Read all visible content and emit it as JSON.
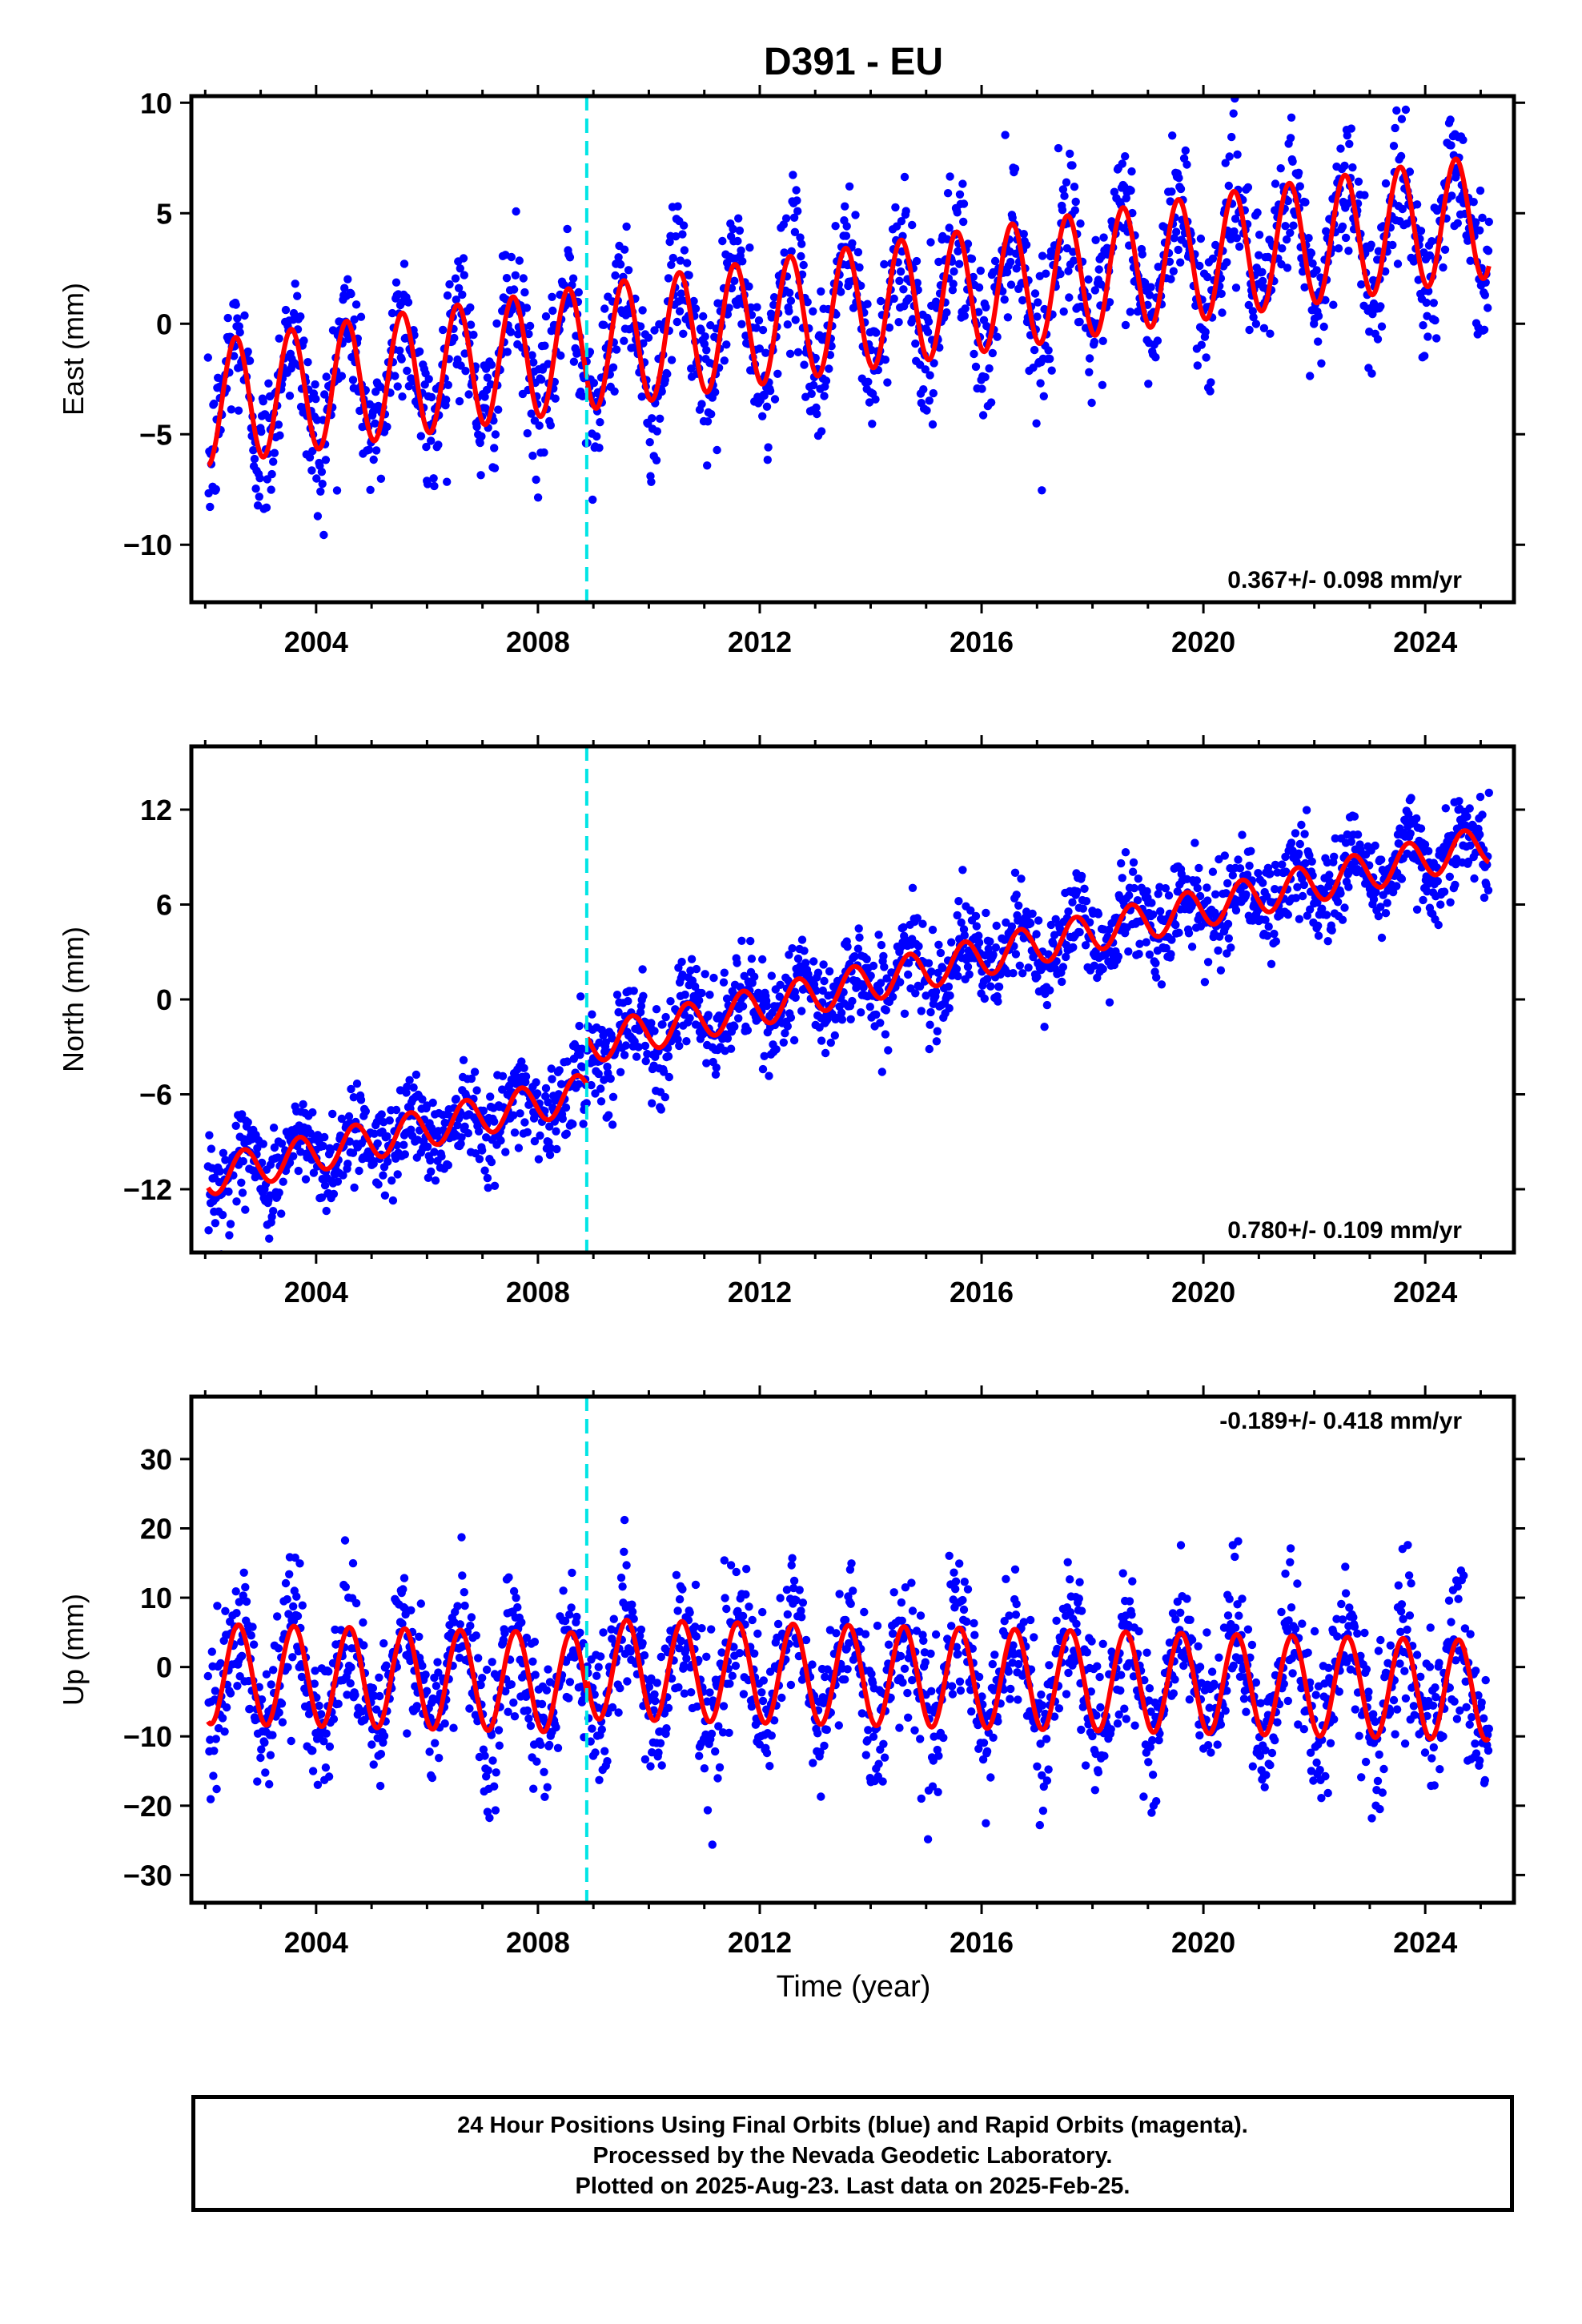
{
  "title": "D391 - EU",
  "x_axis_label": "Time (year)",
  "footer": {
    "line1": "24 Hour Positions Using Final Orbits (blue) and Rapid Orbits (magenta).",
    "line2": "Processed by the Nevada Geodetic Laboratory.",
    "line3": "Plotted on 2025-Aug-23. Last data on 2025-Feb-25."
  },
  "colors": {
    "points": "#0000ff",
    "model": "#ff0000",
    "step_line": "#00e5e5",
    "frame": "#000000"
  },
  "chart_data": [
    {
      "type": "scatter",
      "component": "east",
      "ylabel": "East (mm)",
      "xlim": [
        2001.75,
        2025.6
      ],
      "ylim": [
        -12.6,
        10.3
      ],
      "xticks": [
        2004,
        2008,
        2012,
        2016,
        2020,
        2024
      ],
      "yticks": [
        -10,
        -5,
        0,
        5,
        10
      ],
      "step_epoch": 2008.88,
      "rate_annotation": "0.367+/- 0.098 mm/yr",
      "annotation_position": "bottom-right",
      "model": {
        "intercept": -3.6,
        "slope_mm_per_yr": 0.367,
        "annual_amplitude": 2.8,
        "phase_year": 0.3,
        "offset_at_step": 0.0
      },
      "noise_sd": 1.3,
      "data_start": 2002.05,
      "data_end": 2025.15,
      "series": [
        {
          "name": "24 Hour Positions Using Final Orbits (blue)",
          "kind": "points"
        },
        {
          "name": "model",
          "kind": "line"
        }
      ]
    },
    {
      "type": "scatter",
      "component": "north",
      "ylabel": "North (mm)",
      "xlim": [
        2001.75,
        2025.6
      ],
      "ylim": [
        -16.0,
        16.0
      ],
      "xticks": [
        2004,
        2008,
        2012,
        2016,
        2020,
        2024
      ],
      "yticks": [
        -12,
        -6,
        0,
        6,
        12
      ],
      "step_epoch": 2008.88,
      "rate_annotation": "0.780+/- 0.109 mm/yr",
      "annotation_position": "bottom-right",
      "model": {
        "intercept": -11.2,
        "slope_mm_per_yr": 0.78,
        "annual_amplitude": 1.2,
        "phase_year": 0.45,
        "offset_at_step": 3.0
      },
      "noise_sd": 1.2,
      "data_start": 2002.05,
      "data_end": 2025.15,
      "series": [
        {
          "name": "24 Hour Positions Using Final Orbits (blue)",
          "kind": "points"
        },
        {
          "name": "model",
          "kind": "line"
        }
      ]
    },
    {
      "type": "scatter",
      "component": "up",
      "ylabel": "Up (mm)",
      "xlim": [
        2001.75,
        2025.6
      ],
      "ylim": [
        -34.0,
        39.0
      ],
      "xticks": [
        2004,
        2008,
        2012,
        2016,
        2020,
        2024
      ],
      "yticks": [
        -30,
        -20,
        -10,
        0,
        10,
        20,
        30
      ],
      "step_epoch": 2008.88,
      "rate_annotation": "-0.189+/- 0.418 mm/yr",
      "annotation_position": "top-right",
      "model": {
        "intercept": -1.0,
        "slope_mm_per_yr": -0.189,
        "annual_amplitude": 7.2,
        "phase_year": 0.35,
        "offset_at_step": 2.0
      },
      "noise_sd": 4.2,
      "data_start": 2002.05,
      "data_end": 2025.15,
      "series": [
        {
          "name": "24 Hour Positions Using Final Orbits (blue)",
          "kind": "points"
        },
        {
          "name": "model",
          "kind": "line"
        }
      ]
    }
  ]
}
